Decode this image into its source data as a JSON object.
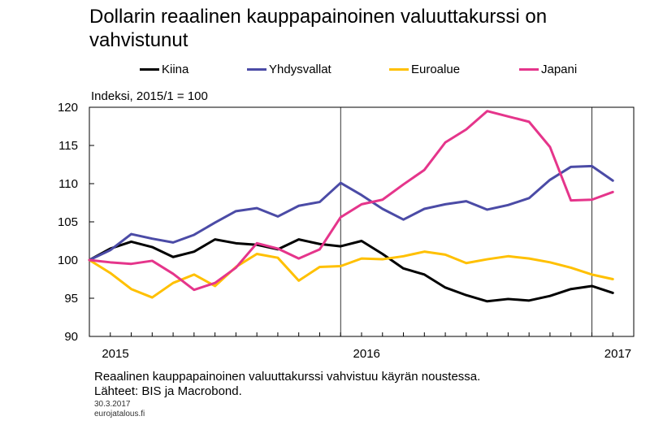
{
  "chart_data": {
    "type": "line",
    "title": "Dollarin reaalinen kauppapainoinen valuuttakurssi on vahvistunut",
    "ylabel": "Indeksi, 2015/1 = 100",
    "ylim": [
      90,
      120
    ],
    "yticks": [
      90,
      95,
      100,
      105,
      110,
      115,
      120
    ],
    "x_tick_labels": [
      "2015",
      "2016",
      "2017"
    ],
    "x_tick_positions": [
      0,
      12,
      24
    ],
    "xlim": [
      0,
      26
    ],
    "x_month_labels": [
      "2015/1",
      "2015/2",
      "2015/3",
      "2015/4",
      "2015/5",
      "2015/6",
      "2015/7",
      "2015/8",
      "2015/9",
      "2015/10",
      "2015/11",
      "2015/12",
      "2016/1",
      "2016/2",
      "2016/3",
      "2016/4",
      "2016/5",
      "2016/6",
      "2016/7",
      "2016/8",
      "2016/9",
      "2016/10",
      "2016/11",
      "2016/12",
      "2017/1",
      "2017/2"
    ],
    "grid": "vertical at year boundaries",
    "legend_position": "top",
    "series": [
      {
        "name": "Kiina",
        "color": "#000000",
        "values": [
          100.0,
          101.5,
          102.4,
          101.7,
          100.4,
          101.1,
          102.7,
          102.2,
          102.0,
          101.4,
          102.7,
          102.1,
          101.8,
          102.5,
          100.8,
          98.9,
          98.1,
          96.4,
          95.4,
          94.6,
          94.9,
          94.7,
          95.3,
          96.2,
          96.6,
          95.7
        ]
      },
      {
        "name": "Yhdysvallat",
        "color": "#4b4ba6",
        "values": [
          100.0,
          101.3,
          103.4,
          102.8,
          102.3,
          103.3,
          104.9,
          106.4,
          106.8,
          105.7,
          107.1,
          107.6,
          110.1,
          108.5,
          106.7,
          105.3,
          106.7,
          107.3,
          107.7,
          106.6,
          107.2,
          108.1,
          110.5,
          112.2,
          112.3,
          110.4
        ]
      },
      {
        "name": "Euroalue",
        "color": "#ffc000",
        "values": [
          100.0,
          98.3,
          96.2,
          95.1,
          97.0,
          98.1,
          96.6,
          99.1,
          100.8,
          100.3,
          97.3,
          99.1,
          99.2,
          100.2,
          100.1,
          100.5,
          101.1,
          100.7,
          99.6,
          100.1,
          100.5,
          100.2,
          99.7,
          99.0,
          98.1,
          97.5
        ]
      },
      {
        "name": "Japani",
        "color": "#e5358b",
        "values": [
          100.0,
          99.7,
          99.5,
          99.9,
          98.2,
          96.1,
          97.0,
          99.0,
          102.2,
          101.5,
          100.2,
          101.4,
          105.6,
          107.3,
          107.9,
          109.9,
          111.8,
          115.4,
          117.1,
          119.5,
          118.8,
          118.1,
          114.8,
          107.8,
          107.9,
          108.9
        ]
      }
    ]
  },
  "footnote": "Reaalinen  kauppapainoinen  valuuttakurssi  vahvistuu  käyrän  noustessa.",
  "source": "Lähteet: BIS ja Macrobond.",
  "date": "30.3.2017",
  "site": "eurojatalous.fi"
}
